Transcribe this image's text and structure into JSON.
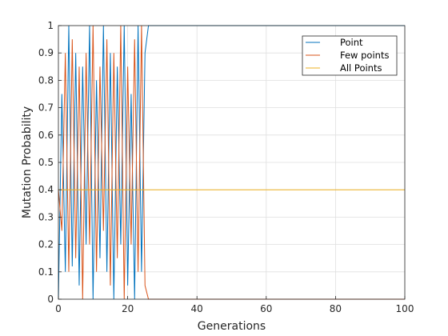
{
  "chart_data": {
    "type": "line",
    "xlabel": "Generations",
    "ylabel": "Mutation Probability",
    "xlim": [
      0,
      100
    ],
    "ylim": [
      0,
      1
    ],
    "xticks": [
      "0",
      "20",
      "40",
      "60",
      "80",
      "100"
    ],
    "yticks": [
      "0",
      "0.1",
      "0.2",
      "0.3",
      "0.4",
      "0.5",
      "0.6",
      "0.7",
      "0.8",
      "0.9",
      "1"
    ],
    "grid": true,
    "legend": {
      "position": "top-right"
    },
    "series": [
      {
        "name": "Point",
        "color": "#0072BD",
        "points": [
          [
            0,
            0.0
          ],
          [
            1,
            0.75
          ],
          [
            2,
            0.1
          ],
          [
            3,
            1.0
          ],
          [
            4,
            0.12
          ],
          [
            5,
            0.9
          ],
          [
            6,
            0.05
          ],
          [
            7,
            0.85
          ],
          [
            8,
            0.2
          ],
          [
            9,
            1.0
          ],
          [
            10,
            0.0
          ],
          [
            11,
            0.8
          ],
          [
            12,
            0.15
          ],
          [
            13,
            1.0
          ],
          [
            14,
            0.1
          ],
          [
            15,
            0.9
          ],
          [
            16,
            0.0
          ],
          [
            17,
            0.85
          ],
          [
            18,
            0.2
          ],
          [
            19,
            1.0
          ],
          [
            20,
            0.05
          ],
          [
            21,
            0.75
          ],
          [
            22,
            0.0
          ],
          [
            23,
            1.0
          ],
          [
            24,
            0.1
          ],
          [
            25,
            0.9
          ],
          [
            26,
            1.0
          ],
          [
            100,
            1.0
          ]
        ]
      },
      {
        "name": "Few points",
        "color": "#D95319",
        "points": [
          [
            0,
            0.4
          ],
          [
            1,
            0.25
          ],
          [
            2,
            0.9
          ],
          [
            3,
            0.1
          ],
          [
            4,
            0.95
          ],
          [
            5,
            0.15
          ],
          [
            6,
            0.85
          ],
          [
            7,
            0.0
          ],
          [
            8,
            0.9
          ],
          [
            9,
            0.2
          ],
          [
            10,
            1.0
          ],
          [
            11,
            0.1
          ],
          [
            12,
            0.85
          ],
          [
            13,
            0.25
          ],
          [
            14,
            0.95
          ],
          [
            15,
            0.05
          ],
          [
            16,
            0.9
          ],
          [
            17,
            0.15
          ],
          [
            18,
            1.0
          ],
          [
            19,
            0.0
          ],
          [
            20,
            0.85
          ],
          [
            21,
            0.2
          ],
          [
            22,
            0.95
          ],
          [
            23,
            0.1
          ],
          [
            24,
            1.0
          ],
          [
            25,
            0.05
          ],
          [
            26,
            0.0
          ],
          [
            100,
            0.0
          ]
        ]
      },
      {
        "name": "All Points",
        "color": "#EDB120",
        "points": [
          [
            0,
            0.4
          ],
          [
            100,
            0.4
          ]
        ]
      }
    ]
  }
}
